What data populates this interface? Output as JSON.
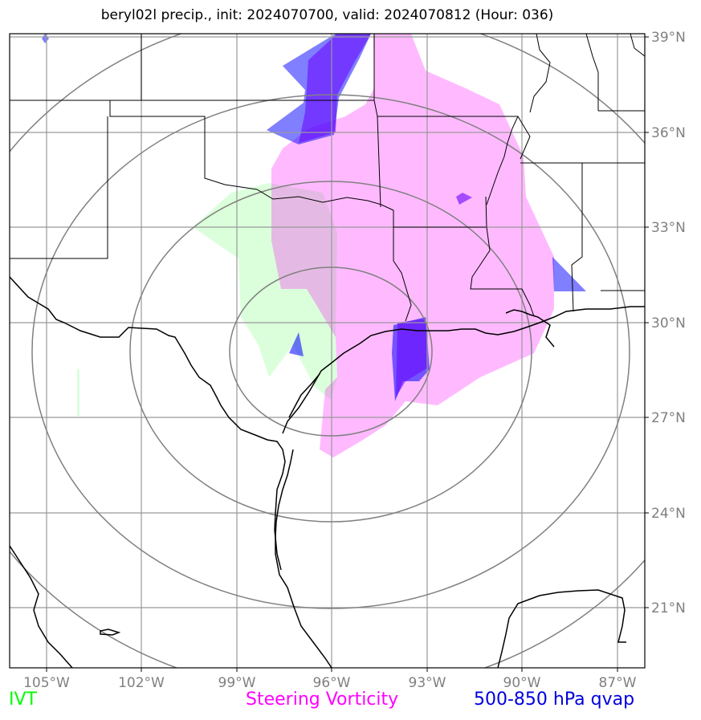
{
  "title": "beryl02l precip., init: 2024070700, valid: 2024070812 (Hour: 036)",
  "map": {
    "lat_labels": [
      "39°N",
      "36°N",
      "33°N",
      "30°N",
      "27°N",
      "24°N",
      "21°N"
    ],
    "lon_labels": [
      "105°W",
      "102°W",
      "99°W",
      "96°W",
      "93°W",
      "90°W",
      "87°W"
    ],
    "label_color": "#808080"
  },
  "legend": {
    "ivt": {
      "label": "IVT",
      "color": "#00ff00"
    },
    "vorticity": {
      "label": "Steering Vorticity",
      "color": "#ff00ff"
    },
    "qvap": {
      "label": "500-850 hPa qvap",
      "color": "#0000dd"
    }
  }
}
